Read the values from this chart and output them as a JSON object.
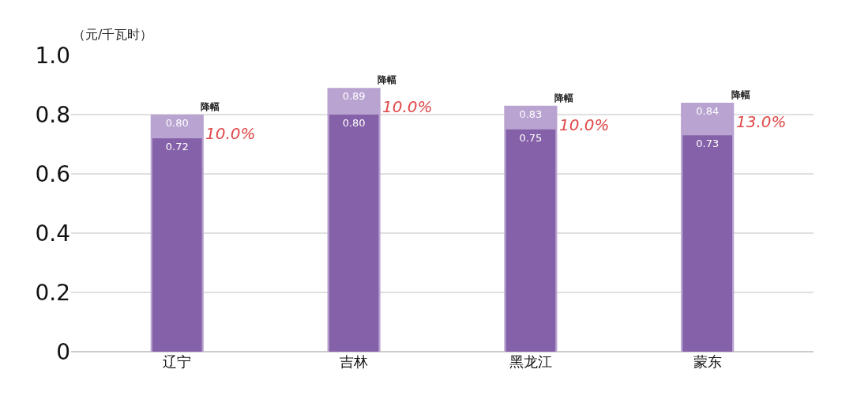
{
  "chart_data": {
    "type": "bar",
    "ylabel": "（元/千瓦时）",
    "categories": [
      "辽宁",
      "吉林",
      "黑龙江",
      "蒙东"
    ],
    "series": [
      {
        "color": "#b9a3d0",
        "values": [
          0.8,
          0.89,
          0.83,
          0.84
        ],
        "value_labels": [
          "0.80",
          "0.89",
          "0.83",
          "0.84"
        ]
      },
      {
        "color": "#8461a8",
        "values": [
          0.72,
          0.8,
          0.75,
          0.73
        ],
        "value_labels": [
          "0.72",
          "0.80",
          "0.75",
          "0.73"
        ]
      }
    ],
    "ylim": [
      0,
      1.0
    ],
    "yticks": [
      0,
      0.2,
      0.4,
      0.6,
      0.8,
      {
        "value": 1.0,
        "label": "1.0"
      }
    ],
    "grid": "y",
    "annotations": [
      {
        "text": "降幅",
        "x": "辽宁",
        "y": 0.8
      },
      {
        "text": "10.0%",
        "x": "辽宁",
        "y": 0.8
      },
      {
        "text": "降幅",
        "x": "吉林",
        "y": 0.89
      },
      {
        "text": "10.0%",
        "x": "吉林",
        "y": 0.89
      },
      {
        "text": "降幅",
        "x": "黑龙江",
        "y": 0.83
      },
      {
        "text": "10.0%",
        "x": "黑龙江",
        "y": 0.83
      },
      {
        "text": "降幅",
        "x": "蒙东",
        "y": 0.84
      },
      {
        "text": "13.0%",
        "x": "蒙东",
        "y": 0.84
      }
    ]
  }
}
